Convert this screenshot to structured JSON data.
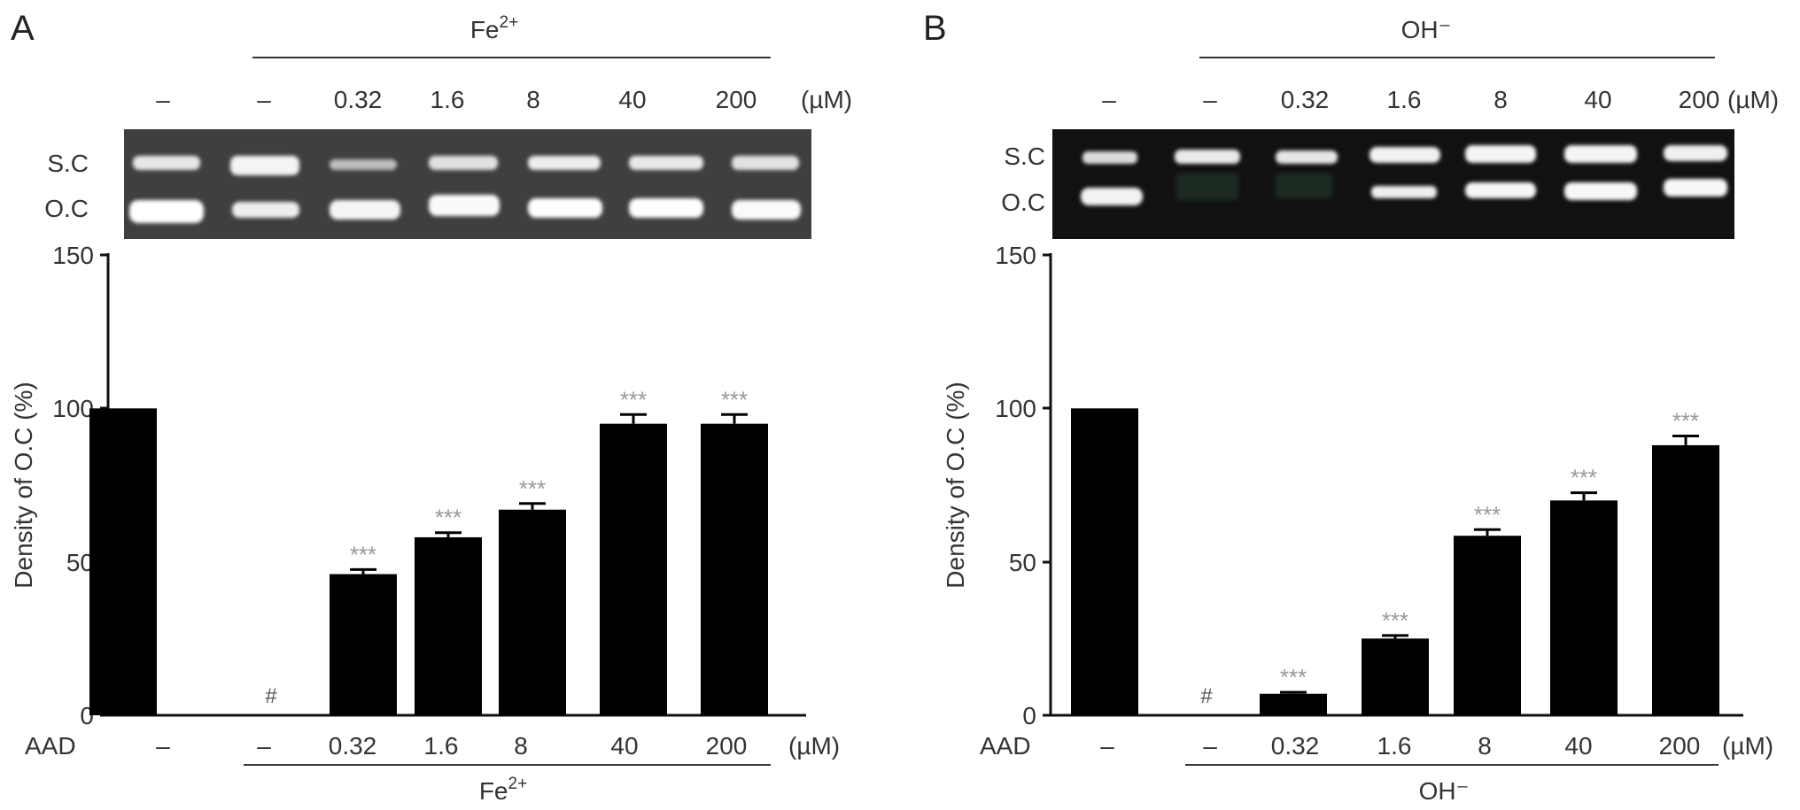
{
  "panels": [
    {
      "letter": "A",
      "header_label": "Fe",
      "header_sup": "2+",
      "conc_labels": [
        "–",
        "–",
        "0.32",
        "1.6",
        "8",
        "40",
        "200"
      ],
      "unit": "(µM)",
      "gel_labels": {
        "sc": "S.C",
        "oc": "O.C"
      },
      "yticks": [
        "150",
        "100",
        "50",
        "0"
      ],
      "ylabel": "Density of O.C (%)",
      "bottom_lead": "AAD",
      "bottom_conc": [
        "–",
        "–",
        "0.32",
        "1.6",
        "8",
        "40",
        "200"
      ],
      "bottom_unit": "(µM)",
      "bottom_label": "Fe",
      "bottom_sup": "2+"
    },
    {
      "letter": "B",
      "header_label": "OH⁻",
      "header_sup": "",
      "conc_labels": [
        "–",
        "–",
        "0.32",
        "1.6",
        "8",
        "40",
        "200"
      ],
      "unit": "(µM)",
      "gel_labels": {
        "sc": "S.C",
        "oc": "O.C"
      },
      "yticks": [
        "150",
        "100",
        "50",
        "0"
      ],
      "ylabel": "Density of O.C (%)",
      "bottom_lead": "AAD",
      "bottom_conc": [
        "–",
        "–",
        "0.32",
        "1.6",
        "8",
        "40",
        "200"
      ],
      "bottom_unit": "(µM)",
      "bottom_label": "OH⁻",
      "bottom_sup": ""
    }
  ],
  "chart_data": [
    {
      "type": "bar",
      "categories": [
        "–",
        "–",
        "0.32",
        "1.6",
        "8",
        "40",
        "200"
      ],
      "values": [
        100,
        0,
        46,
        58,
        67,
        95,
        95
      ],
      "errors": [
        0,
        0,
        1.5,
        1.5,
        2,
        3,
        3
      ],
      "annotations": [
        "",
        "#",
        "***",
        "***",
        "***",
        "***",
        "***"
      ],
      "ylabel": "Density of O.C (%)",
      "ylim": [
        0,
        150
      ],
      "yticks": [
        0,
        50,
        100,
        150
      ],
      "bar_color": "#000000",
      "annotation_color": "#999999"
    },
    {
      "type": "bar",
      "categories": [
        "–",
        "–",
        "0.32",
        "1.6",
        "8",
        "40",
        "200"
      ],
      "values": [
        100,
        0,
        7,
        25,
        58.5,
        70,
        88
      ],
      "errors": [
        0,
        0,
        0.5,
        1,
        2,
        2.5,
        3
      ],
      "annotations": [
        "",
        "#",
        "***",
        "***",
        "***",
        "***",
        "***"
      ],
      "ylabel": "Density of O.C (%)",
      "ylim": [
        0,
        150
      ],
      "yticks": [
        0,
        50,
        100,
        150
      ],
      "bar_color": "#000000",
      "annotation_color": "#999999"
    }
  ]
}
